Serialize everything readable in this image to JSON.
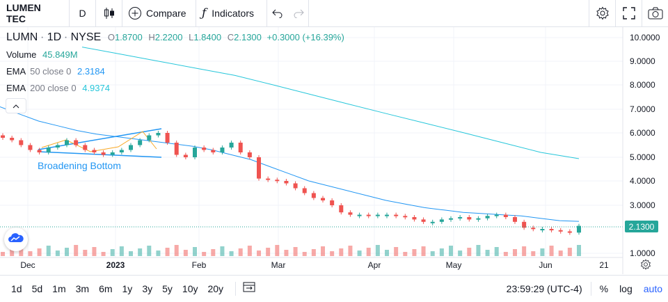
{
  "toolbar": {
    "symbol": "LUMEN TEC",
    "interval": "D",
    "compare_label": "Compare",
    "indicators_label": "Indicators"
  },
  "legend": {
    "title_symbol": "LUMN",
    "title_interval": "1D",
    "title_exchange": "NYSE",
    "o_label": "O",
    "o_value": "1.8700",
    "h_label": "H",
    "h_value": "2.2200",
    "l_label": "L",
    "l_value": "1.8400",
    "c_label": "C",
    "c_value": "2.1300",
    "change": "+0.3000 (+16.39%)",
    "volume_label": "Volume",
    "volume_value": "45.849M",
    "ema50_label": "EMA",
    "ema50_params": "50 close 0",
    "ema50_value": "2.3184",
    "ema200_label": "EMA",
    "ema200_params": "200 close 0",
    "ema200_value": "4.9374"
  },
  "pattern_label": "Broadening Bottom",
  "last_price": "2.1300",
  "colors": {
    "up": "#26a69a",
    "down": "#ef5350",
    "ema50": "#2196f3",
    "ema200": "#26c6da"
  },
  "chart_data": {
    "type": "candlestick",
    "y_ticks": [
      "10.0000",
      "9.0000",
      "8.0000",
      "7.0000",
      "6.0000",
      "5.0000",
      "4.0000",
      "3.0000",
      "1.0000"
    ],
    "x_ticks": [
      "Dec",
      "2023",
      "Feb",
      "Mar",
      "Apr",
      "May",
      "Jun",
      "21"
    ],
    "ylim": [
      1.0,
      10.0
    ],
    "closes": [
      5.8,
      5.7,
      5.5,
      5.3,
      5.2,
      5.4,
      5.5,
      5.7,
      5.5,
      5.3,
      5.2,
      5.1,
      5.2,
      5.3,
      5.5,
      5.7,
      5.9,
      6.0,
      5.6,
      5.1,
      5.0,
      5.4,
      5.3,
      5.2,
      5.4,
      5.6,
      5.2,
      5.0,
      4.1,
      4.05,
      4.0,
      3.9,
      3.7,
      3.5,
      3.3,
      3.2,
      3.0,
      2.7,
      2.6,
      2.6,
      2.55,
      2.6,
      2.6,
      2.55,
      2.5,
      2.4,
      2.3,
      2.3,
      2.4,
      2.45,
      2.5,
      2.4,
      2.45,
      2.55,
      2.6,
      2.5,
      2.3,
      2.05,
      2.0,
      2.0,
      1.95,
      1.9,
      1.85,
      2.13
    ],
    "ema50": [
      7.1,
      6.8,
      6.5,
      6.3,
      6.1,
      5.95,
      5.85,
      5.75,
      5.65,
      5.55,
      5.45,
      5.3,
      5.1,
      4.9,
      4.6,
      4.3,
      4.0,
      3.8,
      3.6,
      3.4,
      3.2,
      3.05,
      2.9,
      2.8,
      2.7,
      2.65,
      2.6,
      2.55,
      2.45,
      2.35,
      2.32
    ],
    "ema200": [
      9.6,
      9.3,
      9.0,
      8.7,
      8.4,
      8.0,
      7.6,
      7.2,
      6.8,
      6.4,
      6.0,
      5.6,
      5.2,
      4.94
    ]
  },
  "bottom": {
    "ranges": [
      "1d",
      "5d",
      "1m",
      "3m",
      "6m",
      "1y",
      "3y",
      "5y",
      "10y",
      "20y"
    ],
    "time": "23:59:29 (UTC-4)",
    "pct": "%",
    "log": "log",
    "auto": "auto"
  }
}
